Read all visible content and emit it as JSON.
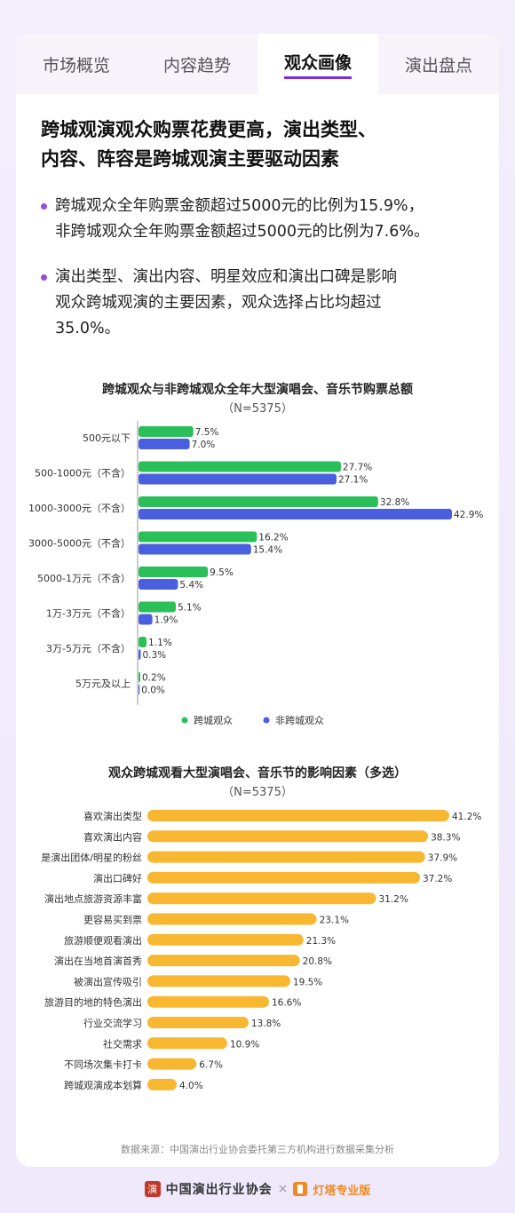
{
  "tabs": [
    {
      "label": "市场概览",
      "active": false
    },
    {
      "label": "内容趋势",
      "active": false
    },
    {
      "label": "观众画像",
      "active": true
    },
    {
      "label": "演出盘点",
      "active": false
    }
  ],
  "headline": {
    "line1": "跨城观演观众购票花费更高，演出类型、",
    "line2": "内容、阵容是跨城观演主要驱动因素"
  },
  "bullets": [
    {
      "line1": "跨城观众全年购票金额超过5000元的比例为15.9%，",
      "line2": "非跨城观众全年购票金额超过5000元的比例为7.6%。",
      "line3": ""
    },
    {
      "line1": "演出类型、演出内容、明星效应和演出口碑是影响",
      "line2": "观众跨城观演的主要因素，观众选择占比均超过",
      "line3": "35.0%。"
    }
  ],
  "colors": {
    "accent": "#7a2ee0",
    "green": "#2bbf5a",
    "blue": "#4a5fe0",
    "orange": "#f7b731"
  },
  "chart_data": [
    {
      "type": "bar",
      "orientation": "horizontal",
      "title": "跨城观众与非跨城观众全年大型演唱会、音乐节购票总额",
      "subtitle": "（N=5375）",
      "categories": [
        "500元以下",
        "500-1000元（不含）",
        "1000-3000元（不含）",
        "3000-5000元（不含）",
        "5000-1万元（不含）",
        "1万-3万元（不含）",
        "3万-5万元（不含）",
        "5万元及以上"
      ],
      "series": [
        {
          "name": "跨城观众",
          "color": "#2bbf5a",
          "values": [
            7.5,
            27.7,
            32.8,
            16.2,
            9.5,
            5.1,
            1.1,
            0.2
          ],
          "labels": [
            "7.5%",
            "27.7%",
            "32.8%",
            "16.2%",
            "9.5%",
            "5.1%",
            "1.1%",
            "0.2%"
          ]
        },
        {
          "name": "非跨城观众",
          "color": "#4a5fe0",
          "values": [
            7.0,
            27.1,
            42.9,
            15.4,
            5.4,
            1.9,
            0.3,
            0.0
          ],
          "labels": [
            "7.0%",
            "27.1%",
            "42.9%",
            "15.4%",
            "5.4%",
            "1.9%",
            "0.3%",
            "0.0%"
          ]
        }
      ],
      "legend_position": "bottom"
    },
    {
      "type": "bar",
      "orientation": "horizontal",
      "title": "观众跨城观看大型演唱会、音乐节的影响因素（多选）",
      "subtitle": "（N=5375）",
      "categories": [
        "喜欢演出类型",
        "喜欢演出内容",
        "是演出团体/明星的粉丝",
        "演出口碑好",
        "演出地点旅游资源丰富",
        "更容易买到票",
        "旅游顺便观看演出",
        "演出在当地首演首秀",
        "被演出宣传吸引",
        "旅游目的地的特色演出",
        "行业交流学习",
        "社交需求",
        "不同场次集卡打卡",
        "跨城观演成本划算"
      ],
      "series": [
        {
          "color": "#f7b731",
          "values": [
            41.2,
            38.3,
            37.9,
            37.2,
            31.2,
            23.1,
            21.3,
            20.8,
            19.5,
            16.6,
            13.8,
            10.9,
            6.7,
            4.0
          ],
          "labels": [
            "41.2%",
            "38.3%",
            "37.9%",
            "37.2%",
            "31.2%",
            "23.1%",
            "21.3%",
            "20.8%",
            "19.5%",
            "16.6%",
            "13.8%",
            "10.9%",
            "6.7%",
            "4.0%"
          ]
        }
      ]
    }
  ],
  "source": "数据来源：中国演出行业协会委托第三方机构进行数据采集分析",
  "footer": {
    "seal_char": "演",
    "org": "中国演出行业协会",
    "times": "×",
    "brand": "灯塔专业版"
  }
}
